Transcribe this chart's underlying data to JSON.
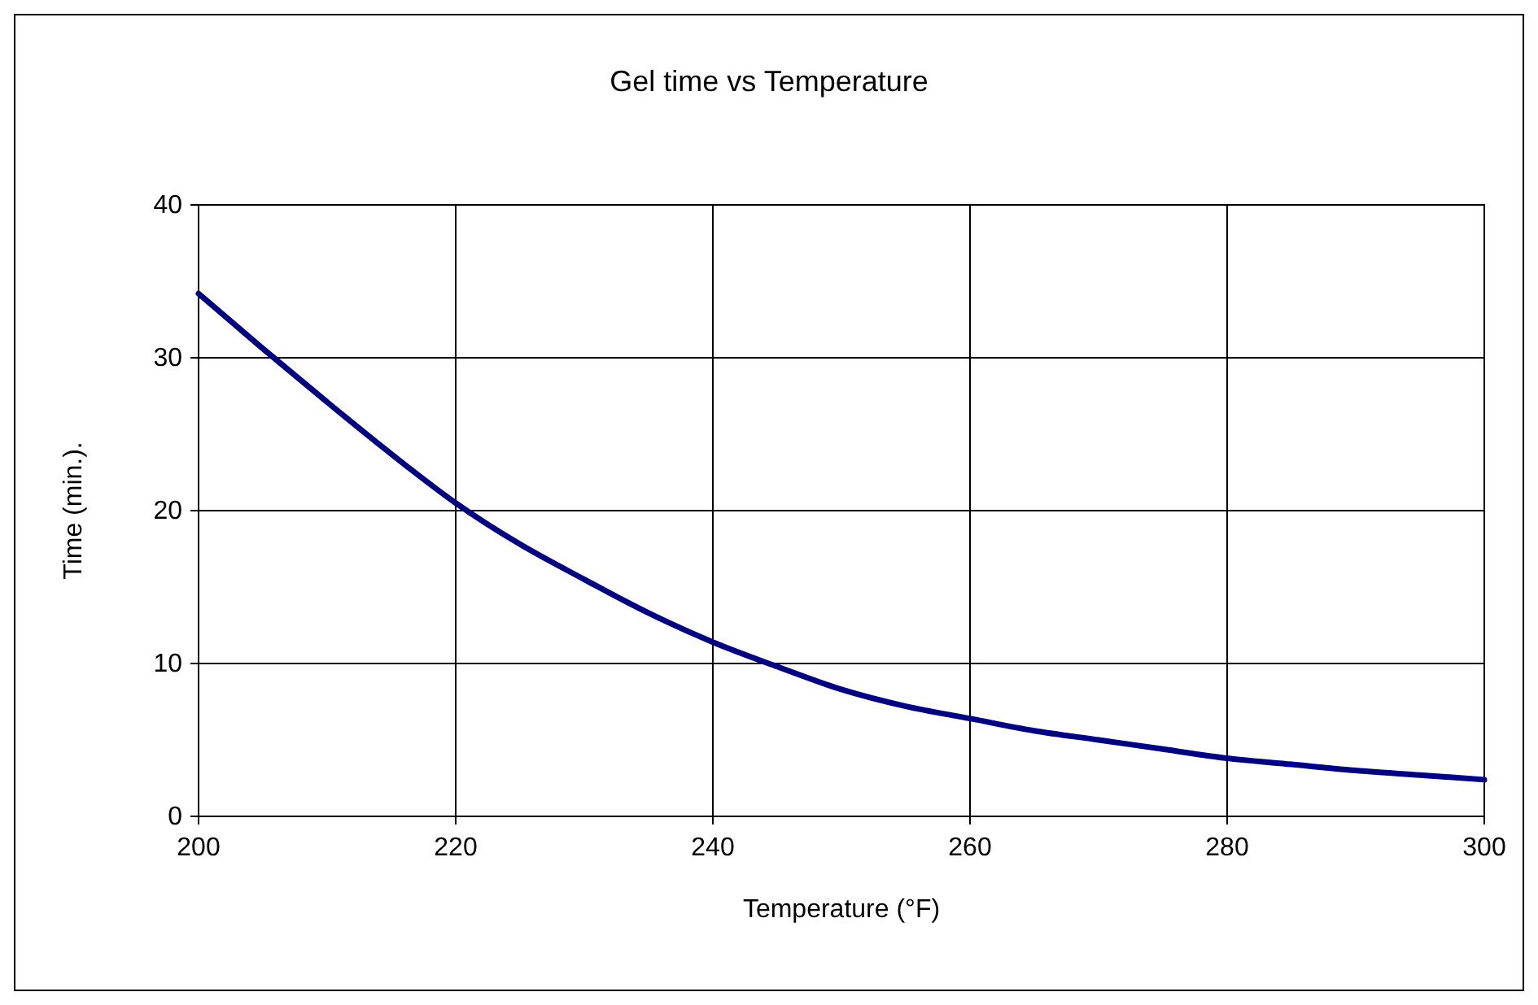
{
  "chart_data": {
    "type": "line",
    "title": "Gel time vs Temperature",
    "xlabel": "Temperature (°F)",
    "ylabel": "Time (min.).",
    "x": [
      200,
      205,
      210,
      215,
      220,
      225,
      230,
      235,
      240,
      245,
      250,
      255,
      260,
      265,
      270,
      275,
      280,
      285,
      290,
      295,
      300
    ],
    "series": [
      {
        "color": "#000080",
        "values": [
          34.2,
          30.6,
          27.1,
          23.7,
          20.5,
          17.8,
          15.5,
          13.3,
          11.4,
          9.8,
          8.3,
          7.2,
          6.4,
          5.6,
          5.0,
          4.4,
          3.8,
          3.4,
          3.0,
          2.7,
          2.4
        ]
      }
    ],
    "xlim": [
      200,
      300
    ],
    "xticks": [
      200,
      220,
      240,
      260,
      280,
      300
    ],
    "ylim": [
      0,
      40
    ],
    "yticks": [
      0,
      10,
      20,
      30,
      40
    ],
    "grid": true,
    "marker": "none",
    "line_style": "solid"
  }
}
